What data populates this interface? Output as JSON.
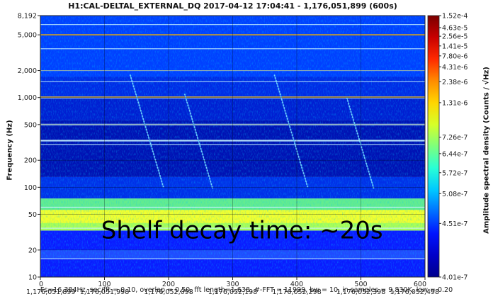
{
  "chart_data": {
    "type": "heatmap",
    "title": "H1:CAL-DELTAL_EXTERNAL_DQ 2017-04-12 17:04:41 - 1,176,051,899 (600s)",
    "ylabel": "Frequency (Hz)",
    "y_scale": "log",
    "ylim": [
      10,
      8192
    ],
    "xlim": [
      0,
      600
    ],
    "x_ticks": [
      0,
      100,
      200,
      300,
      400,
      500,
      600
    ],
    "x_tick_gps": [
      "1,176,051,899",
      "1,176,051,998",
      "1,176,052,098",
      "1,176,052,198",
      "1,176,052,298",
      "1,176,052,398",
      "1,176,052,498"
    ],
    "y_ticks": [
      {
        "value": 10,
        "label": "10"
      },
      {
        "value": 20,
        "label": "20"
      },
      {
        "value": 50,
        "label": "50"
      },
      {
        "value": 100,
        "label": "100"
      },
      {
        "value": 200,
        "label": "200"
      },
      {
        "value": 500,
        "label": "500"
      },
      {
        "value": 1000,
        "label": "1,000"
      },
      {
        "value": 2000,
        "label": "2,000"
      },
      {
        "value": 5000,
        "label": "5,000"
      },
      {
        "value": 8192,
        "label": "8,192"
      }
    ],
    "colorbar": {
      "label": "Amplitude spectral density (Counts / √Hz)",
      "ticks": [
        "1.52e-4",
        "4.63e-5",
        "2.56e-5",
        "1.41e-5",
        "7.80e-6",
        "4.31e-6",
        "2.38e-6",
        "1.31e-6",
        "7.26e-7",
        "6.44e-7",
        "5.72e-7",
        "5.08e-7",
        "4.51e-7",
        "4.01e-7"
      ],
      "colors": [
        "#7a0000",
        "#c80000",
        "#ff2a00",
        "#ff8c00",
        "#ffd500",
        "#d6ff29",
        "#7dff7d",
        "#29ffd6",
        "#00c8ff",
        "#006eff",
        "#0014ff",
        "#0000c8",
        "#00008c"
      ]
    },
    "lines_hz": [
      16,
      35,
      60,
      300,
      331,
      500,
      990,
      1010,
      1500,
      2000,
      3500,
      5000,
      6500
    ],
    "decay_tracks": [
      {
        "t0": 140,
        "f_start": 1800
      },
      {
        "t0": 225,
        "f_start": 1100
      },
      {
        "t0": 365,
        "f_start": 1800
      },
      {
        "t0": 478,
        "f_start": 1000
      }
    ],
    "annotation": "Shelf decay time: ~20s",
    "grid": true
  },
  "footer": {
    "params": "Fs=16,384Hz, sec/fft = 0.10, overlap = 0.50, fft length=1,638, #-FFT = 11999, bw = 10, in samples = 9,830K, low = 0.20"
  }
}
